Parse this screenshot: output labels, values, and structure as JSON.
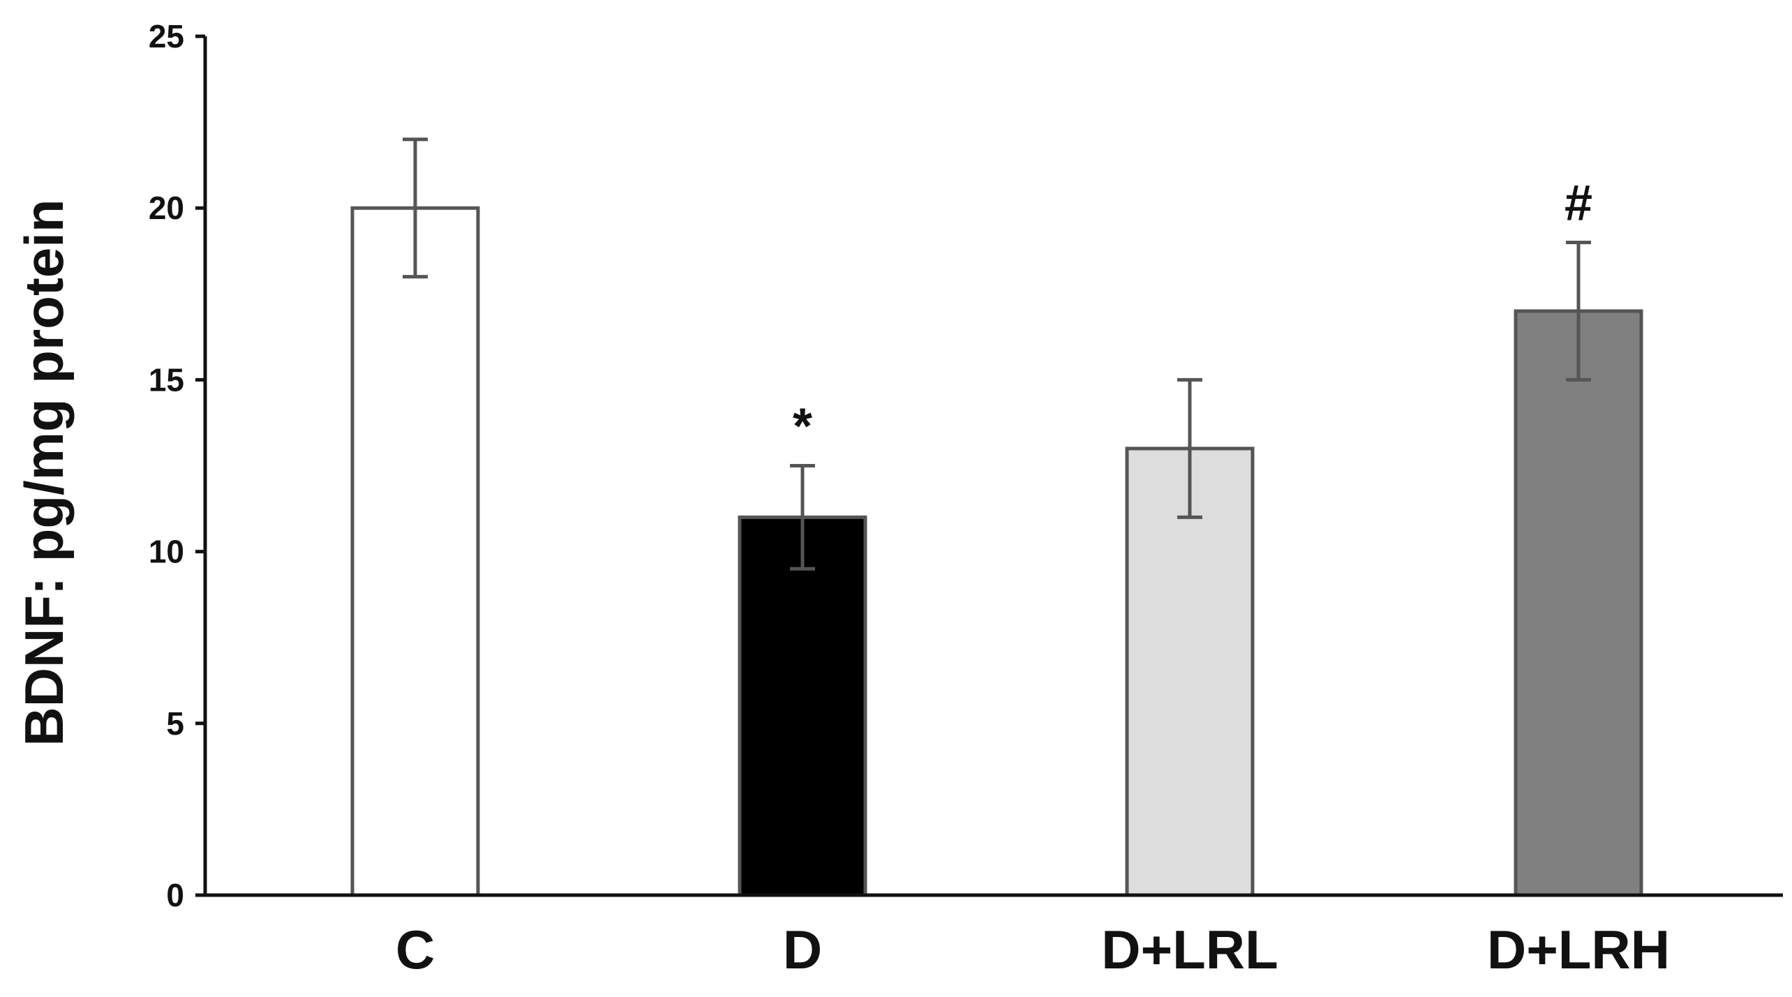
{
  "chart_data": {
    "type": "bar",
    "title": "",
    "xlabel": "",
    "ylabel": "BDNF: pg/mg protein",
    "ylim": [
      0,
      25
    ],
    "yticks": [
      0,
      5,
      10,
      15,
      20,
      25
    ],
    "categories": [
      "C",
      "D",
      "D+LRL",
      "D+LRH"
    ],
    "values": [
      20,
      11,
      13,
      17
    ],
    "error_bars": [
      2,
      1.5,
      2,
      2
    ],
    "annotations": [
      "",
      "*",
      "",
      "#"
    ],
    "bar_colors": [
      "#ffffff",
      "#000000",
      "#dddddd",
      "#808080"
    ],
    "bar_edge_color": "#555555",
    "error_bar_color": "#555555",
    "axis_color": "#111111",
    "grid": false,
    "legend": "none"
  }
}
